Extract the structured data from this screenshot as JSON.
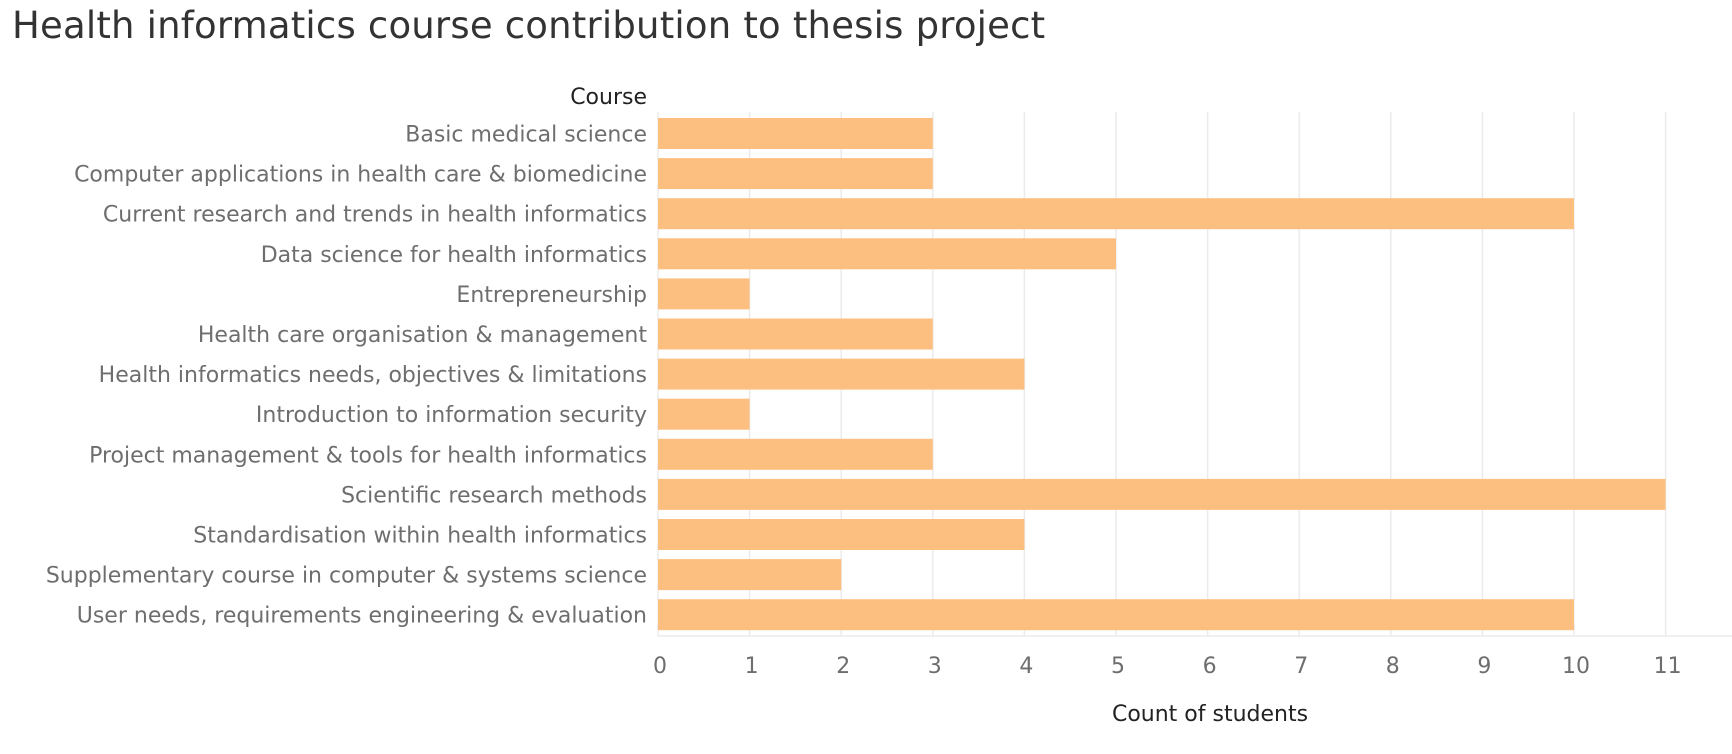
{
  "chart_data": {
    "type": "bar",
    "orientation": "horizontal",
    "title": "Health informatics course contribution to thesis project",
    "ylabel": "Course",
    "xlabel": "Count of students",
    "categories": [
      "Basic medical science",
      "Computer applications in health care & biomedicine",
      "Current research and trends in health informatics",
      "Data science for health informatics",
      "Entrepreneurship",
      "Health care organisation & management",
      "Health informatics needs, objectives & limitations",
      "Introduction to information security",
      "Project management & tools for health informatics",
      "Scientific research methods",
      "Standardisation within health informatics",
      "Supplementary course in computer & systems science",
      "User needs, requirements engineering & evaluation"
    ],
    "values": [
      3,
      3,
      10,
      5,
      1,
      3,
      4,
      1,
      3,
      11,
      4,
      2,
      10
    ],
    "xticks": [
      "0",
      "1",
      "2",
      "3",
      "4",
      "5",
      "6",
      "7",
      "8",
      "9",
      "10",
      "11"
    ],
    "xlim": [
      0,
      11.6
    ],
    "grid": true,
    "bar_color": "#fdbf7f",
    "gridline_color": "#ebebeb"
  }
}
